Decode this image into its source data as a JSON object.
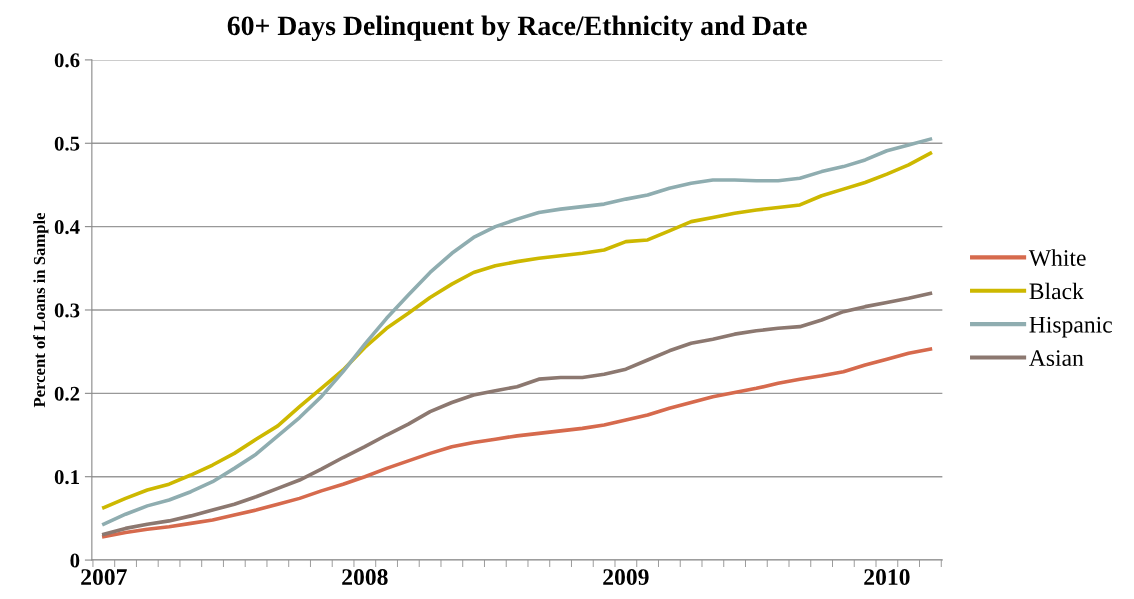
{
  "chart_data": {
    "type": "line",
    "title": "60+ Days Delinquent by Race/Ethnicity and Date",
    "ylabel": "Percent of Loans in Sample",
    "categories": [
      "2007",
      null,
      null,
      null,
      null,
      null,
      null,
      null,
      null,
      null,
      null,
      null,
      "2008",
      null,
      null,
      null,
      null,
      null,
      null,
      null,
      null,
      null,
      null,
      null,
      "2009",
      null,
      null,
      null,
      null,
      null,
      null,
      null,
      null,
      null,
      null,
      null,
      "2010",
      null,
      null
    ],
    "series": [
      {
        "name": "White",
        "color": "#d66a4d",
        "values": [
          0.028,
          0.033,
          0.037,
          0.04,
          0.044,
          0.048,
          0.054,
          0.06,
          0.067,
          0.074,
          0.083,
          0.091,
          0.1,
          0.11,
          0.119,
          0.128,
          0.136,
          0.141,
          0.145,
          0.149,
          0.152,
          0.155,
          0.158,
          0.162,
          0.168,
          0.174,
          0.182,
          0.189,
          0.196,
          0.201,
          0.206,
          0.212,
          0.217,
          0.221,
          0.226,
          0.234,
          0.241,
          0.248,
          0.253
        ]
      },
      {
        "name": "Black",
        "color": "#cdb800",
        "values": [
          0.063,
          0.074,
          0.084,
          0.091,
          0.102,
          0.114,
          0.128,
          0.145,
          0.161,
          0.184,
          0.206,
          0.228,
          0.255,
          0.278,
          0.296,
          0.315,
          0.331,
          0.345,
          0.353,
          0.358,
          0.362,
          0.365,
          0.368,
          0.372,
          0.382,
          0.384,
          0.395,
          0.406,
          0.411,
          0.416,
          0.42,
          0.423,
          0.426,
          0.437,
          0.445,
          0.453,
          0.463,
          0.474,
          0.488
        ]
      },
      {
        "name": "Hispanic",
        "color": "#8fadb0",
        "values": [
          0.043,
          0.055,
          0.065,
          0.072,
          0.082,
          0.094,
          0.11,
          0.127,
          0.149,
          0.171,
          0.196,
          0.226,
          0.259,
          0.29,
          0.318,
          0.345,
          0.368,
          0.387,
          0.4,
          0.409,
          0.417,
          0.421,
          0.424,
          0.427,
          0.433,
          0.438,
          0.446,
          0.452,
          0.456,
          0.456,
          0.455,
          0.455,
          0.458,
          0.466,
          0.472,
          0.48,
          0.491,
          0.498,
          0.505
        ]
      },
      {
        "name": "Asian",
        "color": "#8c7870",
        "values": [
          0.031,
          0.038,
          0.043,
          0.047,
          0.053,
          0.06,
          0.067,
          0.076,
          0.086,
          0.096,
          0.109,
          0.123,
          0.136,
          0.15,
          0.163,
          0.178,
          0.189,
          0.198,
          0.203,
          0.208,
          0.217,
          0.219,
          0.219,
          0.223,
          0.229,
          0.24,
          0.251,
          0.26,
          0.265,
          0.271,
          0.275,
          0.278,
          0.28,
          0.288,
          0.298,
          0.304,
          0.309,
          0.314,
          0.32
        ]
      }
    ],
    "ylim": [
      0,
      0.6
    ],
    "yticks": [
      0,
      0.1,
      0.2,
      0.3,
      0.4,
      0.5,
      0.6
    ],
    "grid": "y",
    "legend": "right",
    "marker": "none",
    "line_style": "solid"
  }
}
